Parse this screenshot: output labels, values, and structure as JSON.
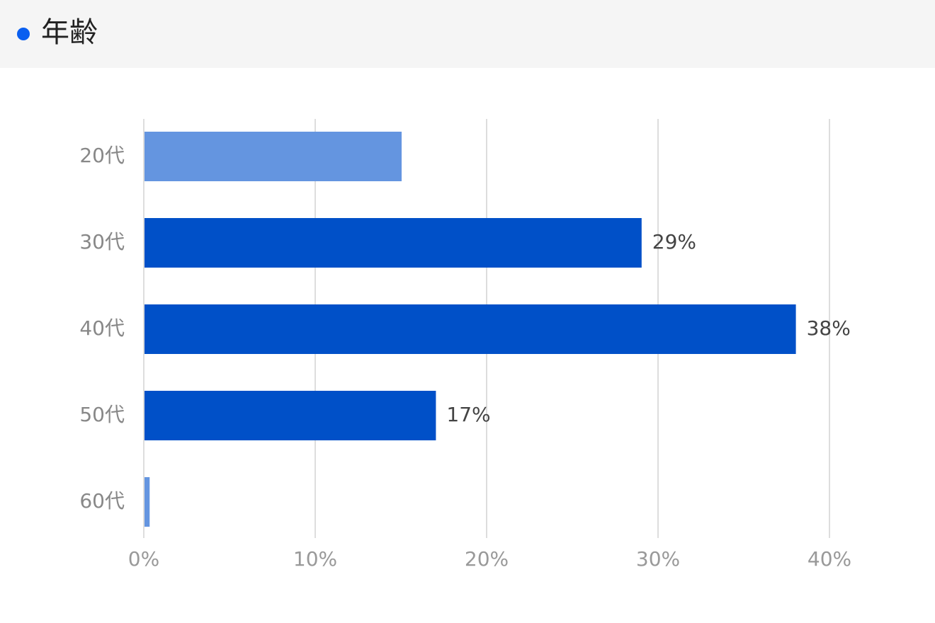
{
  "chart_data": {
    "type": "bar",
    "orientation": "horizontal",
    "title": "年齢",
    "categories": [
      "20代",
      "30代",
      "40代",
      "50代",
      "60代"
    ],
    "values": [
      15,
      29,
      38,
      17,
      0.3
    ],
    "value_labels": [
      null,
      "29%",
      "38%",
      "17%",
      null
    ],
    "colors": [
      "#6495e0",
      "#0050c8",
      "#0050c8",
      "#0050c8",
      "#6495e0"
    ],
    "xlim": [
      0,
      40
    ],
    "xticks": [
      {
        "value": 0,
        "label": "0%"
      },
      {
        "value": 10,
        "label": "10%"
      },
      {
        "value": 20,
        "label": "20%"
      },
      {
        "value": 30,
        "label": "30%"
      },
      {
        "value": 40,
        "label": "40%"
      }
    ],
    "grid": true
  }
}
